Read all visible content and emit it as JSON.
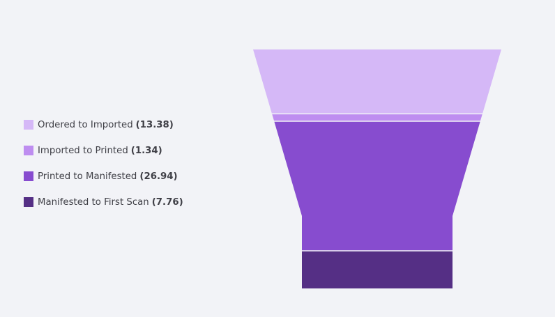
{
  "chart_data": {
    "type": "funnel",
    "stages": [
      {
        "label": "Ordered to Imported",
        "value": 13.38,
        "value_text": "(13.38)",
        "color": "#d5b8f7"
      },
      {
        "label": "Imported to Printed",
        "value": 1.34,
        "value_text": "(1.34)",
        "color": "#be8df0"
      },
      {
        "label": "Printed to Manifested",
        "value": 26.94,
        "value_text": "(26.94)",
        "color": "#874ccf"
      },
      {
        "label": "Manifested to First Scan",
        "value": 7.76,
        "value_text": "(7.76)",
        "color": "#552f85"
      }
    ],
    "legend_position": "left"
  }
}
